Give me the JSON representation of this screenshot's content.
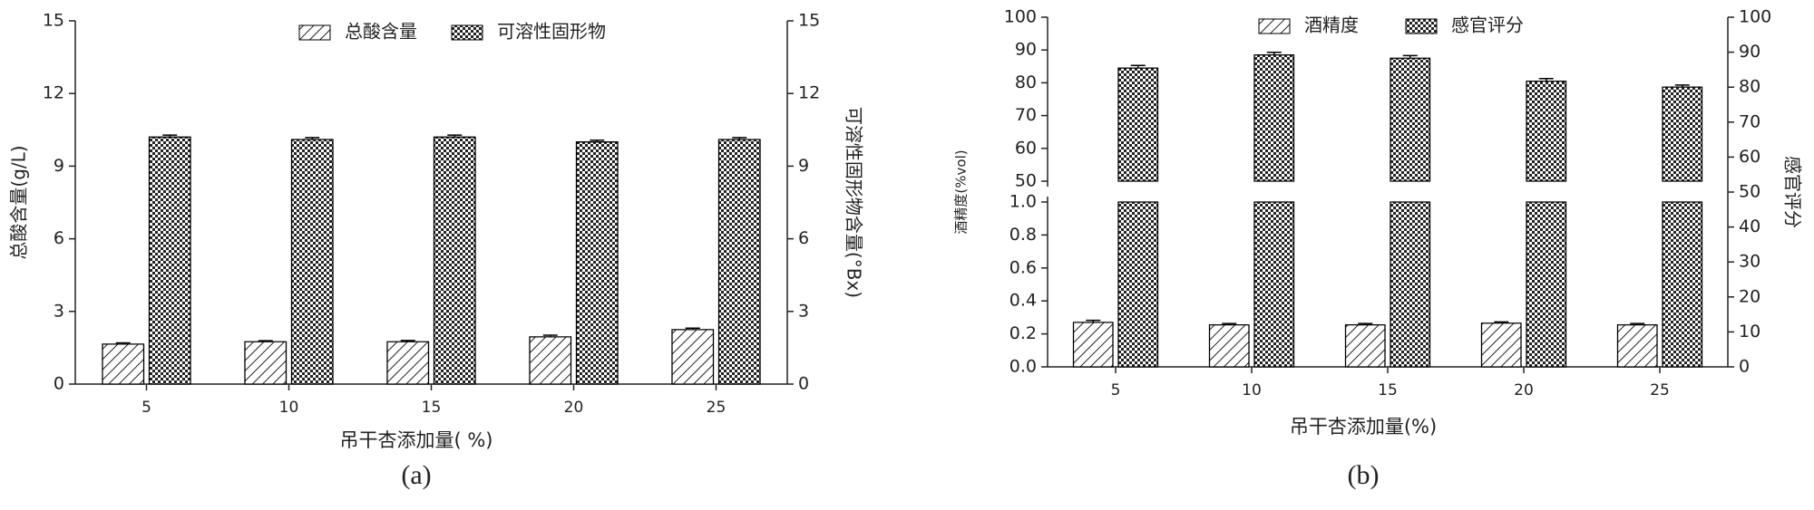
{
  "chart_data": [
    {
      "type": "bar",
      "panel_label": "(a)",
      "x_label": "吊干杏添加量( %)",
      "y_label": "总酸含量(g/L)",
      "y2_label": "可溶性固形物含量(°Bx)",
      "categories": [
        "5",
        "10",
        "15",
        "20",
        "25"
      ],
      "series": [
        {
          "name": "总酸含量",
          "color": "#000000",
          "pattern": "hatch",
          "axis": "y",
          "values": [
            1.65,
            1.75,
            1.75,
            1.95,
            2.25
          ],
          "errors": [
            0.05,
            0.04,
            0.05,
            0.07,
            0.06
          ]
        },
        {
          "name": "可溶性固形物",
          "color": "#000000",
          "pattern": "checker",
          "axis": "y2",
          "values": [
            10.2,
            10.1,
            10.2,
            10.0,
            10.1
          ],
          "errors": [
            0.08,
            0.08,
            0.08,
            0.07,
            0.08
          ]
        }
      ],
      "ylim": [
        0,
        15
      ],
      "yticks": [
        0,
        3,
        6,
        9,
        12,
        15
      ],
      "y2lim": [
        0,
        15
      ],
      "y2ticks": [
        0,
        3,
        6,
        9,
        12,
        15
      ],
      "grid": false
    },
    {
      "type": "broken-bar",
      "panel_label": "(b)",
      "x_label": "吊干杏添加量(%)",
      "y_label": "酒精度(%vol)",
      "y2_label": "感官评分",
      "categories": [
        "5",
        "10",
        "15",
        "20",
        "25"
      ],
      "series": [
        {
          "name": "酒精度",
          "color": "#000000",
          "pattern": "hatch",
          "axis": "y",
          "values": [
            0.27,
            0.255,
            0.255,
            0.265,
            0.255
          ],
          "errors": [
            0.012,
            0.008,
            0.008,
            0.008,
            0.008
          ]
        },
        {
          "name": "感官评分",
          "color": "#000000",
          "pattern": "checker",
          "axis": "y_upper",
          "values": [
            84.5,
            88.5,
            87.5,
            80.5,
            78.7
          ],
          "errors": [
            0.8,
            0.8,
            0.8,
            0.8,
            0.6
          ]
        }
      ],
      "ylim": [
        0,
        1.0
      ],
      "yticks": [
        {
          "value": 0,
          "label": "0.0"
        },
        0.2,
        0.4,
        0.6,
        0.8,
        {
          "value": 1.0,
          "label": "1.0"
        }
      ],
      "ylim_upper": [
        50,
        100
      ],
      "yticks_upper": [
        50,
        60,
        70,
        80,
        90,
        100
      ],
      "y2lim": [
        0,
        100
      ],
      "y2ticks": [
        0,
        10,
        20,
        30,
        40,
        50,
        60,
        70,
        80,
        90,
        100
      ],
      "grid": false
    }
  ]
}
